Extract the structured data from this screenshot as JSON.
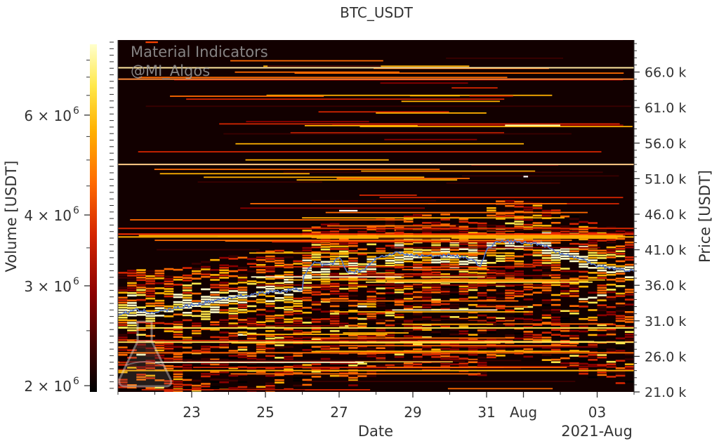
{
  "chart_data": {
    "type": "heatmap",
    "title": "BTC_USDT",
    "xlabel": "Date",
    "ylabel": "Price [USDT]",
    "colorbar_label": "Volume [USDT]",
    "x_range": [
      "2021-07-21",
      "2021-08-04"
    ],
    "x_ticks": [
      "23",
      "25",
      "27",
      "29",
      "31",
      "Aug",
      "03"
    ],
    "x_tick_dates": [
      "2021-07-23",
      "2021-07-25",
      "2021-07-27",
      "2021-07-29",
      "2021-07-31",
      "2021-08-01",
      "2021-08-03"
    ],
    "x_offset_label": "2021-Aug",
    "y_range": [
      21000,
      70500
    ],
    "y_ticks": [
      21000,
      26000,
      31000,
      36000,
      41000,
      46000,
      51000,
      56000,
      61000,
      66000
    ],
    "y_tick_labels": [
      "21.0 k",
      "26.0 k",
      "31.0 k",
      "36.0 k",
      "41.0 k",
      "46.0 k",
      "51.0 k",
      "56.0 k",
      "61.0 k",
      "66.0 k"
    ],
    "colorbar_scale": "log",
    "colorbar_range": [
      1950000,
      8000000
    ],
    "colorbar_ticks": [
      {
        "value": 2000000,
        "label_base": "2 × 10",
        "label_exp": "6"
      },
      {
        "value": 3000000,
        "label_base": "3 × 10",
        "label_exp": "6"
      },
      {
        "value": 4000000,
        "label_base": "4 × 10",
        "label_exp": "6"
      },
      {
        "value": 6000000,
        "label_base": "6 × 10",
        "label_exp": "6"
      }
    ],
    "colormap": [
      "#000000",
      "#3a0000",
      "#8b0000",
      "#d42500",
      "#ff6a00",
      "#ffb000",
      "#ffe84a",
      "#ffffcc"
    ],
    "grid": false,
    "price_line_color": "#5577cc",
    "price_series": {
      "name": "",
      "x": [
        "2021-07-21 00:00",
        "2021-07-21 12:00",
        "2021-07-22 00:00",
        "2021-07-22 12:00",
        "2021-07-23 00:00",
        "2021-07-23 12:00",
        "2021-07-24 00:00",
        "2021-07-24 12:00",
        "2021-07-25 00:00",
        "2021-07-25 12:00",
        "2021-07-26 00:00",
        "2021-07-26 01:00",
        "2021-07-26 08:00",
        "2021-07-26 14:00",
        "2021-07-26 20:00",
        "2021-07-27 00:00",
        "2021-07-27 06:00",
        "2021-07-27 16:00",
        "2021-07-28 00:00",
        "2021-07-28 12:00",
        "2021-07-29 00:00",
        "2021-07-29 12:00",
        "2021-07-30 00:00",
        "2021-07-30 12:00",
        "2021-07-30 20:00",
        "2021-07-31 00:00",
        "2021-07-31 06:00",
        "2021-07-31 12:00",
        "2021-08-01 00:00",
        "2021-08-01 12:00",
        "2021-08-02 00:00",
        "2021-08-02 12:00",
        "2021-08-03 00:00",
        "2021-08-03 12:00",
        "2021-08-04 00:00",
        "2021-08-04 12:00"
      ],
      "y": [
        31900,
        32500,
        32200,
        32700,
        33200,
        33700,
        34300,
        34600,
        35000,
        35200,
        35500,
        37500,
        39200,
        38800,
        39000,
        40000,
        37800,
        38200,
        39800,
        40600,
        40200,
        40100,
        40300,
        39800,
        38800,
        41000,
        42000,
        42200,
        42000,
        41800,
        40500,
        39800,
        38800,
        38300,
        38000,
        37900
      ]
    }
  },
  "watermark": {
    "line1": "Material Indicators",
    "line2": "@MI_Algos"
  }
}
